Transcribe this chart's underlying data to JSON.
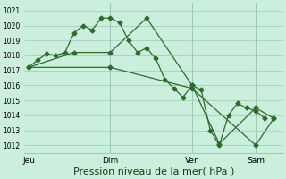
{
  "bg_color": "#cceedd",
  "grid_color": "#99ccbb",
  "line_color": "#2d6b2d",
  "marker_color": "#2d6b2d",
  "xlabel": "Pression niveau de la mer( hPa )",
  "xlabel_fontsize": 8,
  "ylim": [
    1011.5,
    1021.5
  ],
  "yticks": [
    1012,
    1013,
    1014,
    1015,
    1016,
    1017,
    1018,
    1019,
    1020,
    1021
  ],
  "xtick_labels": [
    "Jeu",
    "Dim",
    "Ven",
    "Sam"
  ],
  "xtick_positions": [
    0,
    9,
    18,
    25
  ],
  "vline_positions": [
    0,
    9,
    18,
    25
  ],
  "xlim": [
    -0.5,
    28
  ],
  "series1": {
    "x": [
      0,
      1,
      2,
      3,
      4,
      5,
      6,
      7,
      8,
      9,
      10,
      11,
      12,
      13,
      14,
      15,
      16,
      17,
      18,
      19,
      20,
      21,
      22,
      23,
      24,
      25,
      26
    ],
    "y": [
      1017.2,
      1017.7,
      1018.1,
      1018.0,
      1018.2,
      1019.5,
      1020.0,
      1019.7,
      1020.5,
      1020.5,
      1020.2,
      1019.0,
      1018.2,
      1018.5,
      1017.8,
      1016.4,
      1015.8,
      1015.2,
      1016.0,
      1015.7,
      1013.0,
      1012.0,
      1014.0,
      1014.8,
      1014.5,
      1014.3,
      1013.8
    ]
  },
  "series2": {
    "x": [
      0,
      5,
      9,
      13,
      18,
      21,
      25,
      27
    ],
    "y": [
      1017.2,
      1018.2,
      1018.2,
      1020.5,
      1016.0,
      1012.1,
      1014.5,
      1013.8
    ]
  },
  "series3": {
    "x": [
      0,
      9,
      18,
      25,
      27
    ],
    "y": [
      1017.2,
      1017.2,
      1015.8,
      1012.0,
      1013.8
    ]
  }
}
